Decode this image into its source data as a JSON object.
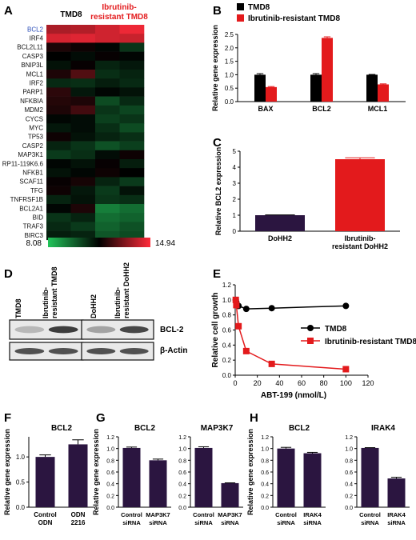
{
  "panels": {
    "A": "A",
    "B": "B",
    "C": "C",
    "D": "D",
    "E": "E",
    "F": "F",
    "G": "G",
    "H": "H"
  },
  "heatmap": {
    "col_group_1": "TMD8",
    "col_group_2": [
      "Ibrutinib-",
      "resistant TMD8"
    ],
    "genes": [
      "BCL2",
      "IRF4",
      "BCL2L11",
      "CASP3",
      "BNIP3L",
      "MCL1",
      "IRF2",
      "PARP1",
      "NFKBIA",
      "MDM2",
      "CYCS",
      "MYC",
      "TP53",
      "CASP2",
      "MAP3K1",
      "RP11-119K6.6",
      "NFKB1",
      "SCAF11",
      "TFG",
      "TNFRSF1B",
      "BCL2A1",
      "BID",
      "TRAF3",
      "BIRC3"
    ],
    "values": [
      [
        13.8,
        13.9,
        14.3,
        14.7
      ],
      [
        14.4,
        14.5,
        14.3,
        14.2
      ],
      [
        11.9,
        11.7,
        11.4,
        10.6
      ],
      [
        11.5,
        11.3,
        11.6,
        11.4
      ],
      [
        11.2,
        11.6,
        10.9,
        11.1
      ],
      [
        11.9,
        12.6,
        10.7,
        10.9
      ],
      [
        10.8,
        10.7,
        11.0,
        10.8
      ],
      [
        12.1,
        11.1,
        11.4,
        11.2
      ],
      [
        12.0,
        11.9,
        10.2,
        10.8
      ],
      [
        11.9,
        12.4,
        10.6,
        10.3
      ],
      [
        11.4,
        11.3,
        10.4,
        10.6
      ],
      [
        11.1,
        11.3,
        10.7,
        10.2
      ],
      [
        11.7,
        11.2,
        10.9,
        10.7
      ],
      [
        10.9,
        10.6,
        10.1,
        10.4
      ],
      [
        10.5,
        10.7,
        11.3,
        11.7
      ],
      [
        11.4,
        11.2,
        11.6,
        11.0
      ],
      [
        11.2,
        11.4,
        11.7,
        11.5
      ],
      [
        11.6,
        11.8,
        10.9,
        10.5
      ],
      [
        11.7,
        11.1,
        10.5,
        11.2
      ],
      [
        10.9,
        11.2,
        10.6,
        10.7
      ],
      [
        11.4,
        11.9,
        9.3,
        9.6
      ],
      [
        10.6,
        10.9,
        9.6,
        9.8
      ],
      [
        10.8,
        10.5,
        9.8,
        10.1
      ],
      [
        11.0,
        10.9,
        10.0,
        10.2
      ]
    ],
    "scale_min": "8.08",
    "scale_max": "14.94",
    "colors": {
      "low": "#22c45a",
      "mid": "#000000",
      "high": "#ff2b3a"
    }
  },
  "chart_data": [
    {
      "panel": "B",
      "type": "bar",
      "ylabel": "Relative gene expression",
      "categories": [
        "BAX",
        "BCL2",
        "MCL1"
      ],
      "series": [
        {
          "name": "TMD8",
          "values": [
            1.0,
            1.0,
            1.0
          ],
          "errors": [
            0.04,
            0.04,
            0.01
          ]
        },
        {
          "name": "Ibrutinib-resistant TMD8",
          "values": [
            0.54,
            2.37,
            0.64
          ],
          "errors": [
            0.02,
            0.04,
            0.02
          ]
        }
      ],
      "ylim": [
        0,
        2.5
      ],
      "yticks": [
        "0.0",
        "0.5",
        "1.0",
        "1.5",
        "2.0",
        "2.5"
      ],
      "legend": "top-left",
      "colors": [
        "#000000",
        "#e31a1c"
      ]
    },
    {
      "panel": "C",
      "type": "bar",
      "ylabel": "Relative BCL2 expression",
      "categories": [
        "DoHH2",
        "Ibrutinib-resistant DoHH2"
      ],
      "category_lines": [
        [
          "DoHH2"
        ],
        [
          "Ibrutinib-",
          "resistant DoHH2"
        ]
      ],
      "values": [
        1.0,
        4.5
      ],
      "errors": [
        0.02,
        0.09
      ],
      "ylim": [
        0,
        5
      ],
      "yticks": [
        "0",
        "1",
        "2",
        "3",
        "4",
        "5"
      ],
      "colors": [
        "#2b1540",
        "#e31a1c"
      ]
    },
    {
      "panel": "E",
      "type": "line",
      "ylabel": "Relative cell growth",
      "xlabel": "ABT-199 (nmol/L)",
      "xlim": [
        0,
        120
      ],
      "ylim": [
        0,
        1.2
      ],
      "xticks": [
        "0",
        "20",
        "40",
        "60",
        "80",
        "100",
        "120"
      ],
      "yticks": [
        "0.0",
        "0.2",
        "0.4",
        "0.6",
        "0.8",
        "1.0",
        "1.2"
      ],
      "series": [
        {
          "name": "TMD8",
          "x": [
            0.5,
            1,
            3,
            10,
            33,
            100
          ],
          "y": [
            1.0,
            0.97,
            0.92,
            0.88,
            0.89,
            0.92
          ],
          "color": "#000000",
          "marker": "circle"
        },
        {
          "name": "Ibrutinib-resistant TMD8",
          "x": [
            0.5,
            1,
            3,
            10,
            33,
            100
          ],
          "y": [
            1.0,
            0.93,
            0.65,
            0.32,
            0.15,
            0.08
          ],
          "color": "#e31a1c",
          "marker": "square"
        }
      ],
      "legend": "right"
    },
    {
      "panel": "F",
      "type": "bar",
      "title": "BCL2",
      "ylabel": "Relative gene expression",
      "categories": [
        [
          "Control",
          "ODN"
        ],
        [
          "ODN",
          "2216"
        ]
      ],
      "values": [
        1.0,
        1.25
      ],
      "errors": [
        0.04,
        0.09
      ],
      "ylim": [
        0,
        1.4
      ],
      "yticks": [
        "0.0",
        "0.5",
        "1.0"
      ],
      "ytick_values": [
        0,
        0.5,
        1.0
      ],
      "colors": [
        "#2b1540"
      ]
    },
    {
      "panel": "G1",
      "type": "bar",
      "title": "BCL2",
      "ylabel": "Relative gene expression",
      "categories": [
        [
          "Control",
          "siRNA"
        ],
        [
          "MAP3K7",
          "siRNA"
        ]
      ],
      "values": [
        1.01,
        0.8
      ],
      "errors": [
        0.015,
        0.02
      ],
      "ylim": [
        0,
        1.2
      ],
      "yticks": [
        "0.0",
        "0.2",
        "0.4",
        "0.6",
        "0.8",
        "1.0",
        "1.2"
      ],
      "colors": [
        "#2b1540"
      ]
    },
    {
      "panel": "G2",
      "type": "bar",
      "title": "MAP3K7",
      "categories": [
        [
          "Control",
          "siRNA"
        ],
        [
          "MAP3K7",
          "siRNA"
        ]
      ],
      "values": [
        1.01,
        0.41
      ],
      "errors": [
        0.02,
        0.005
      ],
      "ylim": [
        0,
        1.2
      ],
      "yticks": [
        "0.0",
        "0.2",
        "0.4",
        "0.6",
        "0.8",
        "1.0",
        "1.2"
      ],
      "colors": [
        "#2b1540"
      ]
    },
    {
      "panel": "H1",
      "type": "bar",
      "title": "BCL2",
      "ylabel": "Relative gene expression",
      "categories": [
        [
          "Control",
          "siRNA"
        ],
        [
          "IRAK4",
          "siRNA"
        ]
      ],
      "values": [
        1.0,
        0.92
      ],
      "errors": [
        0.02,
        0.015
      ],
      "ylim": [
        0,
        1.2
      ],
      "yticks": [
        "0.0",
        "0.2",
        "0.4",
        "0.6",
        "0.8",
        "1.0",
        "1.2"
      ],
      "colors": [
        "#2b1540"
      ]
    },
    {
      "panel": "H2",
      "type": "bar",
      "title": "IRAK4",
      "categories": [
        [
          "Control",
          "siRNA"
        ],
        [
          "IRAK4",
          "siRNA"
        ]
      ],
      "values": [
        1.01,
        0.49
      ],
      "errors": [
        0.005,
        0.02
      ],
      "ylim": [
        0,
        1.2
      ],
      "yticks": [
        "0.0",
        "0.2",
        "0.4",
        "0.6",
        "0.8",
        "1.0",
        "1.2"
      ],
      "colors": [
        "#2b1540"
      ]
    }
  ],
  "western": {
    "lanes_left": [
      "TMD8",
      [
        "Ibrutinib-",
        "resistant TMD8"
      ]
    ],
    "lanes_right": [
      "DoHH2",
      [
        "Ibrutinib-",
        "resistant DoHH2"
      ]
    ],
    "bands": [
      "BCL-2",
      "β-Actin"
    ],
    "intensity": {
      "bcl2": [
        0.25,
        0.85,
        0.35,
        0.8
      ],
      "actin": [
        0.75,
        0.75,
        0.75,
        0.75
      ]
    }
  }
}
